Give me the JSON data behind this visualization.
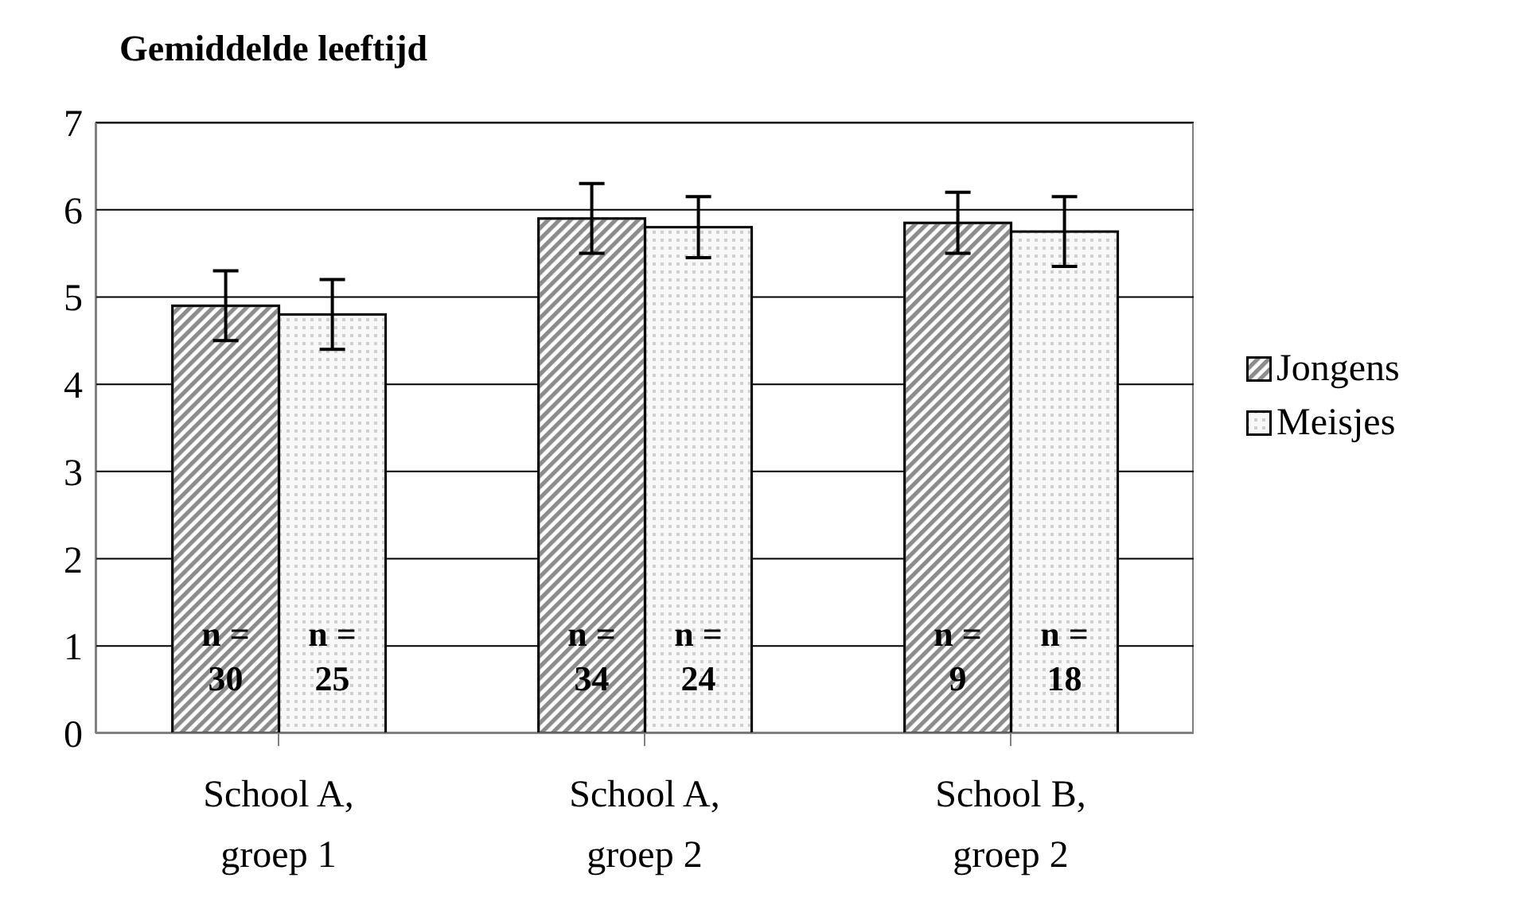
{
  "chart_data": {
    "type": "bar",
    "title": "Gemiddelde leeftijd",
    "categories": [
      "School A, groep 1",
      "School A, groep 2",
      "School B, groep 2"
    ],
    "series": [
      {
        "name": "Jongens",
        "color": "#8c8c8c",
        "values": [
          4.9,
          5.9,
          5.85
        ],
        "errors": [
          0.4,
          0.4,
          0.35
        ]
      },
      {
        "name": "Meisjes",
        "color": "#d0d0d0",
        "values": [
          4.8,
          5.8,
          5.75
        ],
        "errors": [
          0.4,
          0.35,
          0.4
        ]
      }
    ],
    "ylim": [
      0,
      7
    ],
    "yticks": [
      0,
      1,
      2,
      3,
      4,
      5,
      6,
      7
    ],
    "grid": "y",
    "legend": "right",
    "annotations": [
      {
        "text": "n = 30",
        "x": "School A, groep 1",
        "y": 1
      },
      {
        "text": "n = 25",
        "x": "School A, groep 1",
        "y": 1
      },
      {
        "text": "n = 34",
        "x": "School A, groep 2",
        "y": 1
      },
      {
        "text": "n = 24",
        "x": "School A, groep 2",
        "y": 1
      },
      {
        "text": "n = 9",
        "x": "School B, groep 2",
        "y": 1
      },
      {
        "text": "n = 18",
        "x": "School B, groep 2",
        "y": 1
      }
    ]
  }
}
